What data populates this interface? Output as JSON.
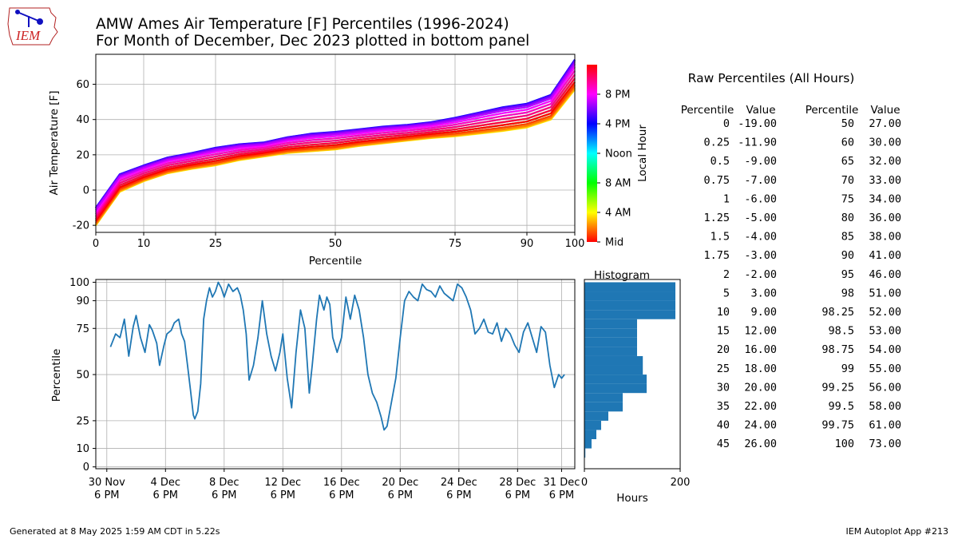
{
  "logo_text": "IEM",
  "title_line1": "AMW Ames Air Temperature [F] Percentiles (1996-2024)",
  "title_line2": "For Month of December, Dec 2023 plotted in bottom panel",
  "footer_left": "Generated at 8 May 2025 1:59 AM CDT in 5.22s",
  "footer_right": "IEM Autoplot App #213",
  "table_title": "Raw Percentiles (All Hours)",
  "table_headers": [
    "Percentile",
    "Value",
    "Percentile",
    "Value"
  ],
  "table_left": [
    [
      "0",
      "-19.00"
    ],
    [
      "0.25",
      "-11.90"
    ],
    [
      "0.5",
      "-9.00"
    ],
    [
      "0.75",
      "-7.00"
    ],
    [
      "1",
      "-6.00"
    ],
    [
      "1.25",
      "-5.00"
    ],
    [
      "1.5",
      "-4.00"
    ],
    [
      "1.75",
      "-3.00"
    ],
    [
      "2",
      "-2.00"
    ],
    [
      "5",
      "3.00"
    ],
    [
      "10",
      "9.00"
    ],
    [
      "15",
      "12.00"
    ],
    [
      "20",
      "16.00"
    ],
    [
      "25",
      "18.00"
    ],
    [
      "30",
      "20.00"
    ],
    [
      "35",
      "22.00"
    ],
    [
      "40",
      "24.00"
    ],
    [
      "45",
      "26.00"
    ]
  ],
  "table_right": [
    [
      "50",
      "27.00"
    ],
    [
      "60",
      "30.00"
    ],
    [
      "65",
      "32.00"
    ],
    [
      "70",
      "33.00"
    ],
    [
      "75",
      "34.00"
    ],
    [
      "80",
      "36.00"
    ],
    [
      "85",
      "38.00"
    ],
    [
      "90",
      "41.00"
    ],
    [
      "95",
      "46.00"
    ],
    [
      "98",
      "51.00"
    ],
    [
      "98.25",
      "52.00"
    ],
    [
      "98.5",
      "53.00"
    ],
    [
      "98.75",
      "54.00"
    ],
    [
      "99",
      "55.00"
    ],
    [
      "99.25",
      "56.00"
    ],
    [
      "99.5",
      "58.00"
    ],
    [
      "99.75",
      "61.00"
    ],
    [
      "100",
      "73.00"
    ]
  ],
  "chart_data": [
    {
      "type": "line",
      "name": "top-percentile-curves",
      "xlabel": "Percentile",
      "ylabel": "Air Temperature [F]",
      "xlim": [
        0,
        100
      ],
      "ylim": [
        -24,
        77
      ],
      "xticks": [
        0,
        10,
        25,
        50,
        75,
        90,
        100
      ],
      "yticks": [
        -20,
        0,
        20,
        40,
        60
      ],
      "grid": true,
      "x": [
        0,
        5,
        10,
        15,
        20,
        25,
        30,
        35,
        40,
        45,
        50,
        55,
        60,
        65,
        70,
        75,
        80,
        85,
        90,
        95,
        100
      ],
      "curve_cold": [
        -20,
        -1,
        5,
        9.5,
        12,
        14,
        17,
        19,
        21,
        22,
        23,
        25,
        26.5,
        28,
        29.5,
        30.5,
        32,
        33.5,
        35.5,
        40,
        57
      ],
      "curve_warm": [
        -10,
        9,
        14,
        18.5,
        21,
        24,
        26,
        27,
        30,
        32,
        33,
        34.5,
        36,
        37,
        38.5,
        41,
        44,
        47,
        49,
        54,
        74
      ],
      "colorbar": {
        "label": "Local Hour",
        "ticks": [
          "Mid",
          "4 AM",
          "8 AM",
          "Noon",
          "4 PM",
          "8 PM"
        ],
        "tick_hours": [
          0,
          4,
          8,
          12,
          16,
          20
        ],
        "range": [
          0,
          24
        ],
        "colors": [
          "#ff0000",
          "#ffff00",
          "#00ff00",
          "#00ffff",
          "#0000ff",
          "#ff00ff",
          "#ff0000"
        ]
      }
    },
    {
      "type": "line",
      "name": "dec-2023-percentile-timeseries",
      "ylabel": "Percentile",
      "xlim_days": [
        -0.75,
        31.9
      ],
      "ylim": [
        -1,
        101.5
      ],
      "yticks": [
        0,
        10,
        25,
        50,
        75,
        90,
        100
      ],
      "xtick_days": [
        0,
        4,
        8,
        12,
        16,
        20,
        24,
        28,
        31
      ],
      "xtick_labels": [
        [
          "30 Nov",
          "6 PM"
        ],
        [
          "4 Dec",
          "6 PM"
        ],
        [
          "8 Dec",
          "6 PM"
        ],
        [
          "12 Dec",
          "6 PM"
        ],
        [
          "16 Dec",
          "6 PM"
        ],
        [
          "20 Dec",
          "6 PM"
        ],
        [
          "24 Dec",
          "6 PM"
        ],
        [
          "28 Dec",
          "6 PM"
        ],
        [
          "31 Dec",
          "6 PM"
        ]
      ],
      "grid": true,
      "color": "#1f77b4",
      "series_days": [
        0.25,
        0.6,
        0.9,
        1.2,
        1.5,
        1.8,
        2.0,
        2.3,
        2.6,
        2.9,
        3.1,
        3.4,
        3.6,
        3.9,
        4.1,
        4.4,
        4.6,
        4.9,
        5.1,
        5.3,
        5.5,
        5.7,
        5.9,
        6.0,
        6.2,
        6.4,
        6.6,
        6.8,
        7.0,
        7.2,
        7.4,
        7.6,
        7.8,
        8.0,
        8.3,
        8.6,
        8.9,
        9.1,
        9.3,
        9.5,
        9.7,
        10.0,
        10.3,
        10.6,
        10.9,
        11.2,
        11.5,
        11.8,
        12.0,
        12.3,
        12.6,
        12.9,
        13.2,
        13.5,
        13.8,
        14.0,
        14.3,
        14.5,
        14.8,
        15.0,
        15.2,
        15.4,
        15.7,
        16.0,
        16.3,
        16.6,
        16.9,
        17.2,
        17.5,
        17.8,
        18.1,
        18.4,
        18.7,
        18.9,
        19.1,
        19.4,
        19.7,
        20.0,
        20.3,
        20.6,
        20.9,
        21.2,
        21.5,
        21.8,
        22.1,
        22.4,
        22.7,
        23.0,
        23.3,
        23.6,
        23.9,
        24.2,
        24.5,
        24.8,
        25.1,
        25.4,
        25.7,
        26.0,
        26.3,
        26.6,
        26.9,
        27.2,
        27.5,
        27.8,
        28.1,
        28.4,
        28.7,
        29.0,
        29.3,
        29.6,
        29.9,
        30.2,
        30.5,
        30.8,
        31.0,
        31.2
      ],
      "series_pct": [
        65,
        72,
        70,
        80,
        60,
        76,
        82,
        70,
        62,
        77,
        74,
        67,
        55,
        66,
        72,
        74,
        78,
        80,
        72,
        68,
        55,
        42,
        28,
        26,
        30,
        45,
        80,
        90,
        97,
        92,
        95,
        100,
        97,
        92,
        99,
        95,
        97,
        93,
        85,
        72,
        47,
        55,
        70,
        90,
        72,
        60,
        52,
        62,
        72,
        48,
        32,
        62,
        85,
        75,
        40,
        55,
        80,
        93,
        85,
        92,
        88,
        70,
        62,
        70,
        92,
        80,
        93,
        85,
        70,
        50,
        40,
        35,
        27,
        20,
        22,
        35,
        48,
        70,
        90,
        95,
        92,
        90,
        99,
        96,
        95,
        92,
        98,
        94,
        92,
        90,
        99,
        97,
        92,
        85,
        72,
        75,
        80,
        73,
        72,
        78,
        68,
        75,
        72,
        66,
        62,
        73,
        78,
        70,
        62,
        76,
        73,
        55,
        43,
        50,
        48,
        50
      ]
    },
    {
      "type": "bar",
      "name": "histogram",
      "title": "Histogram",
      "orientation": "horizontal",
      "xlabel": "Hours",
      "xlim": [
        0,
        200
      ],
      "xticks": [
        0,
        200
      ],
      "bin_edges": [
        0,
        5,
        10,
        15,
        20,
        25,
        30,
        35,
        40,
        45,
        50,
        55,
        60,
        65,
        70,
        75,
        80,
        85,
        90,
        95,
        100
      ],
      "values": [
        0,
        2,
        15,
        25,
        35,
        50,
        80,
        80,
        130,
        130,
        122,
        122,
        110,
        110,
        110,
        110,
        190,
        190,
        190,
        190
      ],
      "color": "#1f77b4"
    }
  ]
}
